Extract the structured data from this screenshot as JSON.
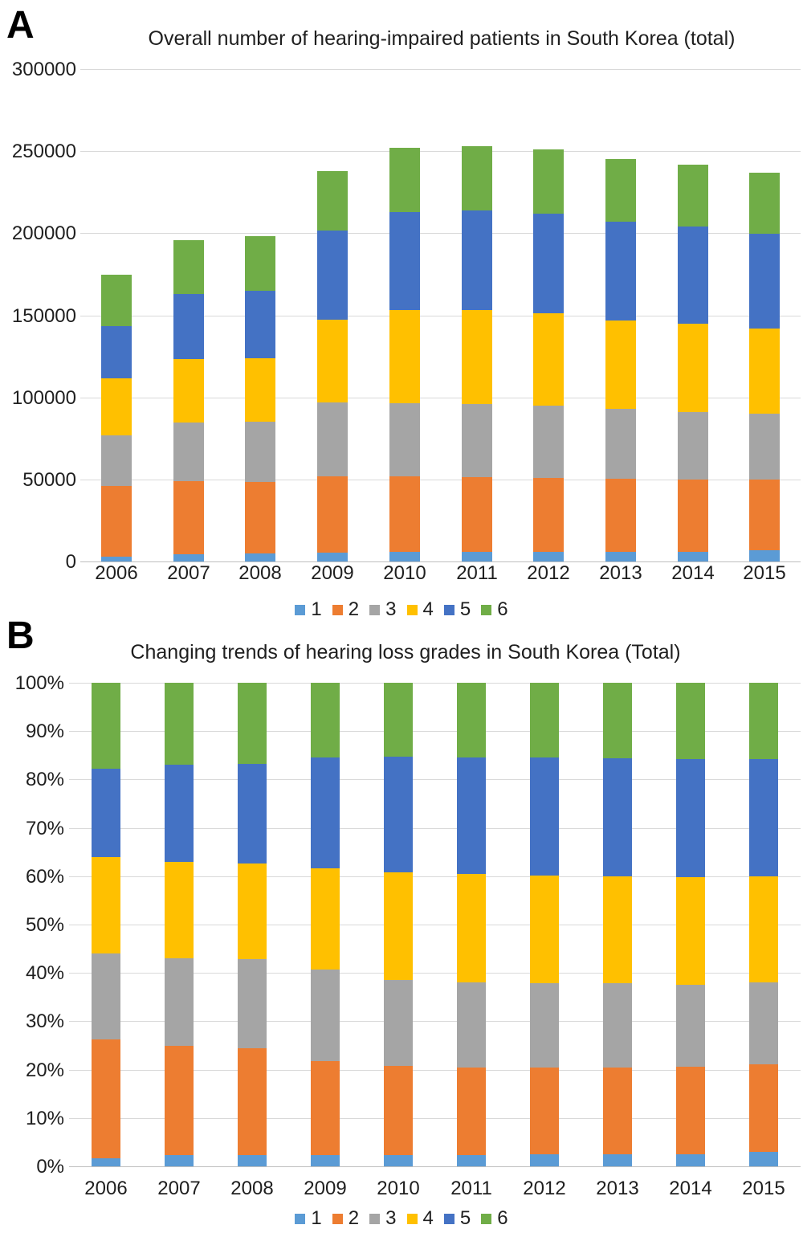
{
  "panelA": {
    "label": "A",
    "title": "Overall number of hearing-impaired patients in South Korea (total)"
  },
  "panelB": {
    "label": "B",
    "title": "Changing trends of hearing loss grades in South Korea (Total)"
  },
  "colors": {
    "grid": "#D9D9D9",
    "axis": "#BFBFBF",
    "series1": "#5B9BD5",
    "series2": "#ED7D31",
    "series3": "#A5A5A5",
    "series4": "#FFC000",
    "series5": "#4472C4",
    "series6": "#70AD47"
  },
  "chart_data": [
    {
      "id": "A",
      "type": "bar",
      "stacked": true,
      "title": "Overall number of hearing-impaired patients in South Korea (total)",
      "categories": [
        "2006",
        "2007",
        "2008",
        "2009",
        "2010",
        "2011",
        "2012",
        "2013",
        "2014",
        "2015"
      ],
      "series": [
        {
          "name": "1",
          "color": "#5B9BD5",
          "values": [
            3000,
            4500,
            5000,
            5500,
            6000,
            6000,
            6000,
            6000,
            6000,
            7000
          ]
        },
        {
          "name": "2",
          "color": "#ED7D31",
          "values": [
            43000,
            44500,
            43500,
            46500,
            46000,
            45500,
            45000,
            44500,
            44000,
            43000
          ]
        },
        {
          "name": "3",
          "color": "#A5A5A5",
          "values": [
            31000,
            35500,
            36500,
            45000,
            44500,
            44500,
            44000,
            42500,
            41000,
            40000
          ]
        },
        {
          "name": "4",
          "color": "#FFC000",
          "values": [
            34500,
            39000,
            39000,
            50500,
            56500,
            57000,
            56000,
            54000,
            54000,
            52000
          ]
        },
        {
          "name": "5",
          "color": "#4472C4",
          "values": [
            32000,
            39500,
            41000,
            54000,
            60000,
            61000,
            61000,
            60000,
            59000,
            57500
          ]
        },
        {
          "name": "6",
          "color": "#70AD47",
          "values": [
            31000,
            33000,
            33000,
            36500,
            39000,
            39000,
            39000,
            38000,
            38000,
            37500
          ]
        }
      ],
      "totals": [
        174500,
        196000,
        198000,
        238000,
        252000,
        253000,
        251000,
        245000,
        242000,
        237000
      ],
      "xlabel": "",
      "ylabel": "",
      "ylim": [
        0,
        300000
      ],
      "ytick_interval": 50000,
      "ytick_labels": [
        "0",
        "50000",
        "100000",
        "150000",
        "200000",
        "250000",
        "300000"
      ],
      "grid": true,
      "legend_position": "bottom"
    },
    {
      "id": "B",
      "type": "bar",
      "stacked": true,
      "percent": true,
      "title": "Changing trends of hearing loss grades in South Korea (Total)",
      "categories": [
        "2006",
        "2007",
        "2008",
        "2009",
        "2010",
        "2011",
        "2012",
        "2013",
        "2014",
        "2015"
      ],
      "series": [
        {
          "name": "1",
          "color": "#5B9BD5",
          "values": [
            1.7,
            2.3,
            2.4,
            2.3,
            2.4,
            2.4,
            2.5,
            2.5,
            2.5,
            3.0
          ]
        },
        {
          "name": "2",
          "color": "#ED7D31",
          "values": [
            24.6,
            22.7,
            22.0,
            19.5,
            18.3,
            18.0,
            17.9,
            18.0,
            18.1,
            18.1
          ]
        },
        {
          "name": "3",
          "color": "#A5A5A5",
          "values": [
            17.8,
            18.0,
            18.4,
            18.9,
            17.8,
            17.6,
            17.4,
            17.4,
            17.0,
            16.9
          ]
        },
        {
          "name": "4",
          "color": "#FFC000",
          "values": [
            19.8,
            19.9,
            19.8,
            21.0,
            22.3,
            22.5,
            22.3,
            22.1,
            22.2,
            21.9
          ]
        },
        {
          "name": "5",
          "color": "#4472C4",
          "values": [
            18.4,
            20.2,
            20.7,
            22.8,
            23.9,
            24.1,
            24.4,
            24.4,
            24.4,
            24.3
          ]
        },
        {
          "name": "6",
          "color": "#70AD47",
          "values": [
            17.7,
            16.9,
            16.7,
            15.5,
            15.3,
            15.4,
            15.5,
            15.6,
            15.8,
            15.8
          ]
        }
      ],
      "xlabel": "",
      "ylabel": "",
      "ylim": [
        0,
        100
      ],
      "ytick_interval": 10,
      "ytick_labels": [
        "0%",
        "10%",
        "20%",
        "30%",
        "40%",
        "50%",
        "60%",
        "70%",
        "80%",
        "90%",
        "100%"
      ],
      "grid": true,
      "legend_position": "bottom"
    }
  ]
}
